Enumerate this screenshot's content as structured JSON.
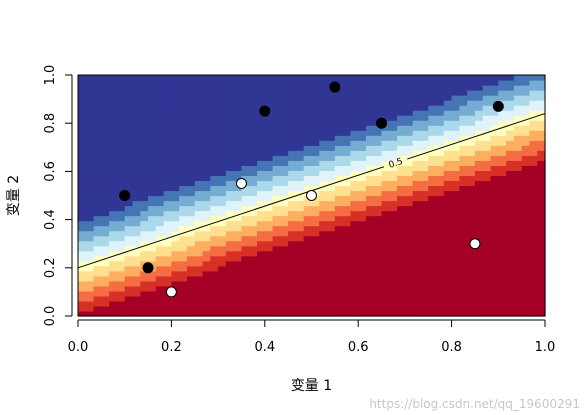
{
  "chart_data": {
    "type": "heatmap",
    "title": "",
    "xlabel": "变量 1",
    "ylabel": "变量 2",
    "xlim": [
      0,
      1
    ],
    "ylim": [
      0,
      1
    ],
    "x_ticks": [
      "0.0",
      "0.2",
      "0.4",
      "0.6",
      "0.8",
      "1.0"
    ],
    "y_ticks": [
      "0.0",
      "0.2",
      "0.4",
      "0.6",
      "0.8",
      "1.0"
    ],
    "boundary": {
      "label": "0.5",
      "x": [
        0,
        1
      ],
      "y": [
        0.2,
        0.84
      ]
    },
    "color_scale": [
      "#a50026",
      "#d73027",
      "#f46d43",
      "#fdae61",
      "#fee090",
      "#ffffbf",
      "#e0f3f8",
      "#abd9e9",
      "#74add1",
      "#4575b4",
      "#313695"
    ],
    "points": [
      {
        "x": 0.1,
        "y": 0.5,
        "class": "black"
      },
      {
        "x": 0.15,
        "y": 0.2,
        "class": "black"
      },
      {
        "x": 0.4,
        "y": 0.85,
        "class": "black"
      },
      {
        "x": 0.55,
        "y": 0.95,
        "class": "black"
      },
      {
        "x": 0.65,
        "y": 0.8,
        "class": "black"
      },
      {
        "x": 0.9,
        "y": 0.87,
        "class": "black"
      },
      {
        "x": 0.2,
        "y": 0.1,
        "class": "white"
      },
      {
        "x": 0.35,
        "y": 0.55,
        "class": "white"
      },
      {
        "x": 0.5,
        "y": 0.5,
        "class": "white"
      },
      {
        "x": 0.85,
        "y": 0.3,
        "class": "white"
      }
    ]
  },
  "watermark": "https://blog.csdn.net/qq_19600291"
}
